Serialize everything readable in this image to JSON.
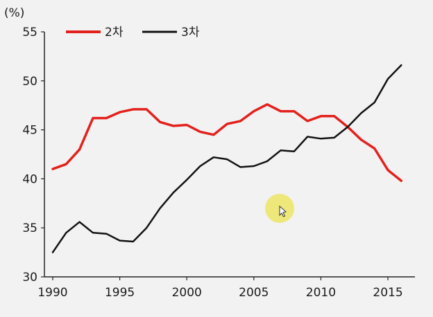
{
  "chart_data": {
    "type": "line",
    "unit_label": "(%)",
    "xlabel": "",
    "ylabel": "",
    "xlim": [
      1990,
      2016.5
    ],
    "ylim": [
      30,
      55
    ],
    "x_ticks": [
      1990,
      1995,
      2000,
      2005,
      2010,
      2015
    ],
    "y_ticks": [
      30,
      35,
      40,
      45,
      50,
      55
    ],
    "grid": false,
    "legend_position": "top-left",
    "series": [
      {
        "name": "2차",
        "color": "#e3211c",
        "x": [
          1990,
          1991,
          1992,
          1993,
          1994,
          1995,
          1996,
          1997,
          1998,
          1999,
          2000,
          2001,
          2002,
          2003,
          2004,
          2005,
          2006,
          2007,
          2008,
          2009,
          2010,
          2011,
          2012,
          2013,
          2014,
          2015,
          2016
        ],
        "values": [
          41.0,
          41.5,
          43.0,
          46.2,
          46.2,
          46.8,
          47.1,
          47.1,
          45.8,
          45.4,
          45.5,
          44.8,
          44.5,
          45.6,
          45.9,
          46.9,
          47.6,
          46.9,
          46.9,
          45.9,
          46.4,
          46.4,
          45.3,
          44.0,
          43.1,
          40.9,
          39.8
        ]
      },
      {
        "name": "3차",
        "color": "#111111",
        "x": [
          1990,
          1991,
          1992,
          1993,
          1994,
          1995,
          1996,
          1997,
          1998,
          1999,
          2000,
          2001,
          2002,
          2003,
          2004,
          2005,
          2006,
          2007,
          2008,
          2009,
          2010,
          2011,
          2012,
          2013,
          2014,
          2015,
          2016
        ],
        "values": [
          32.5,
          34.5,
          35.6,
          34.5,
          34.4,
          33.7,
          33.6,
          35.0,
          37.0,
          38.6,
          39.9,
          41.3,
          42.2,
          42.0,
          41.2,
          41.3,
          41.8,
          42.9,
          42.8,
          44.3,
          44.1,
          44.2,
          45.3,
          46.7,
          47.8,
          50.2,
          51.6
        ]
      }
    ]
  }
}
